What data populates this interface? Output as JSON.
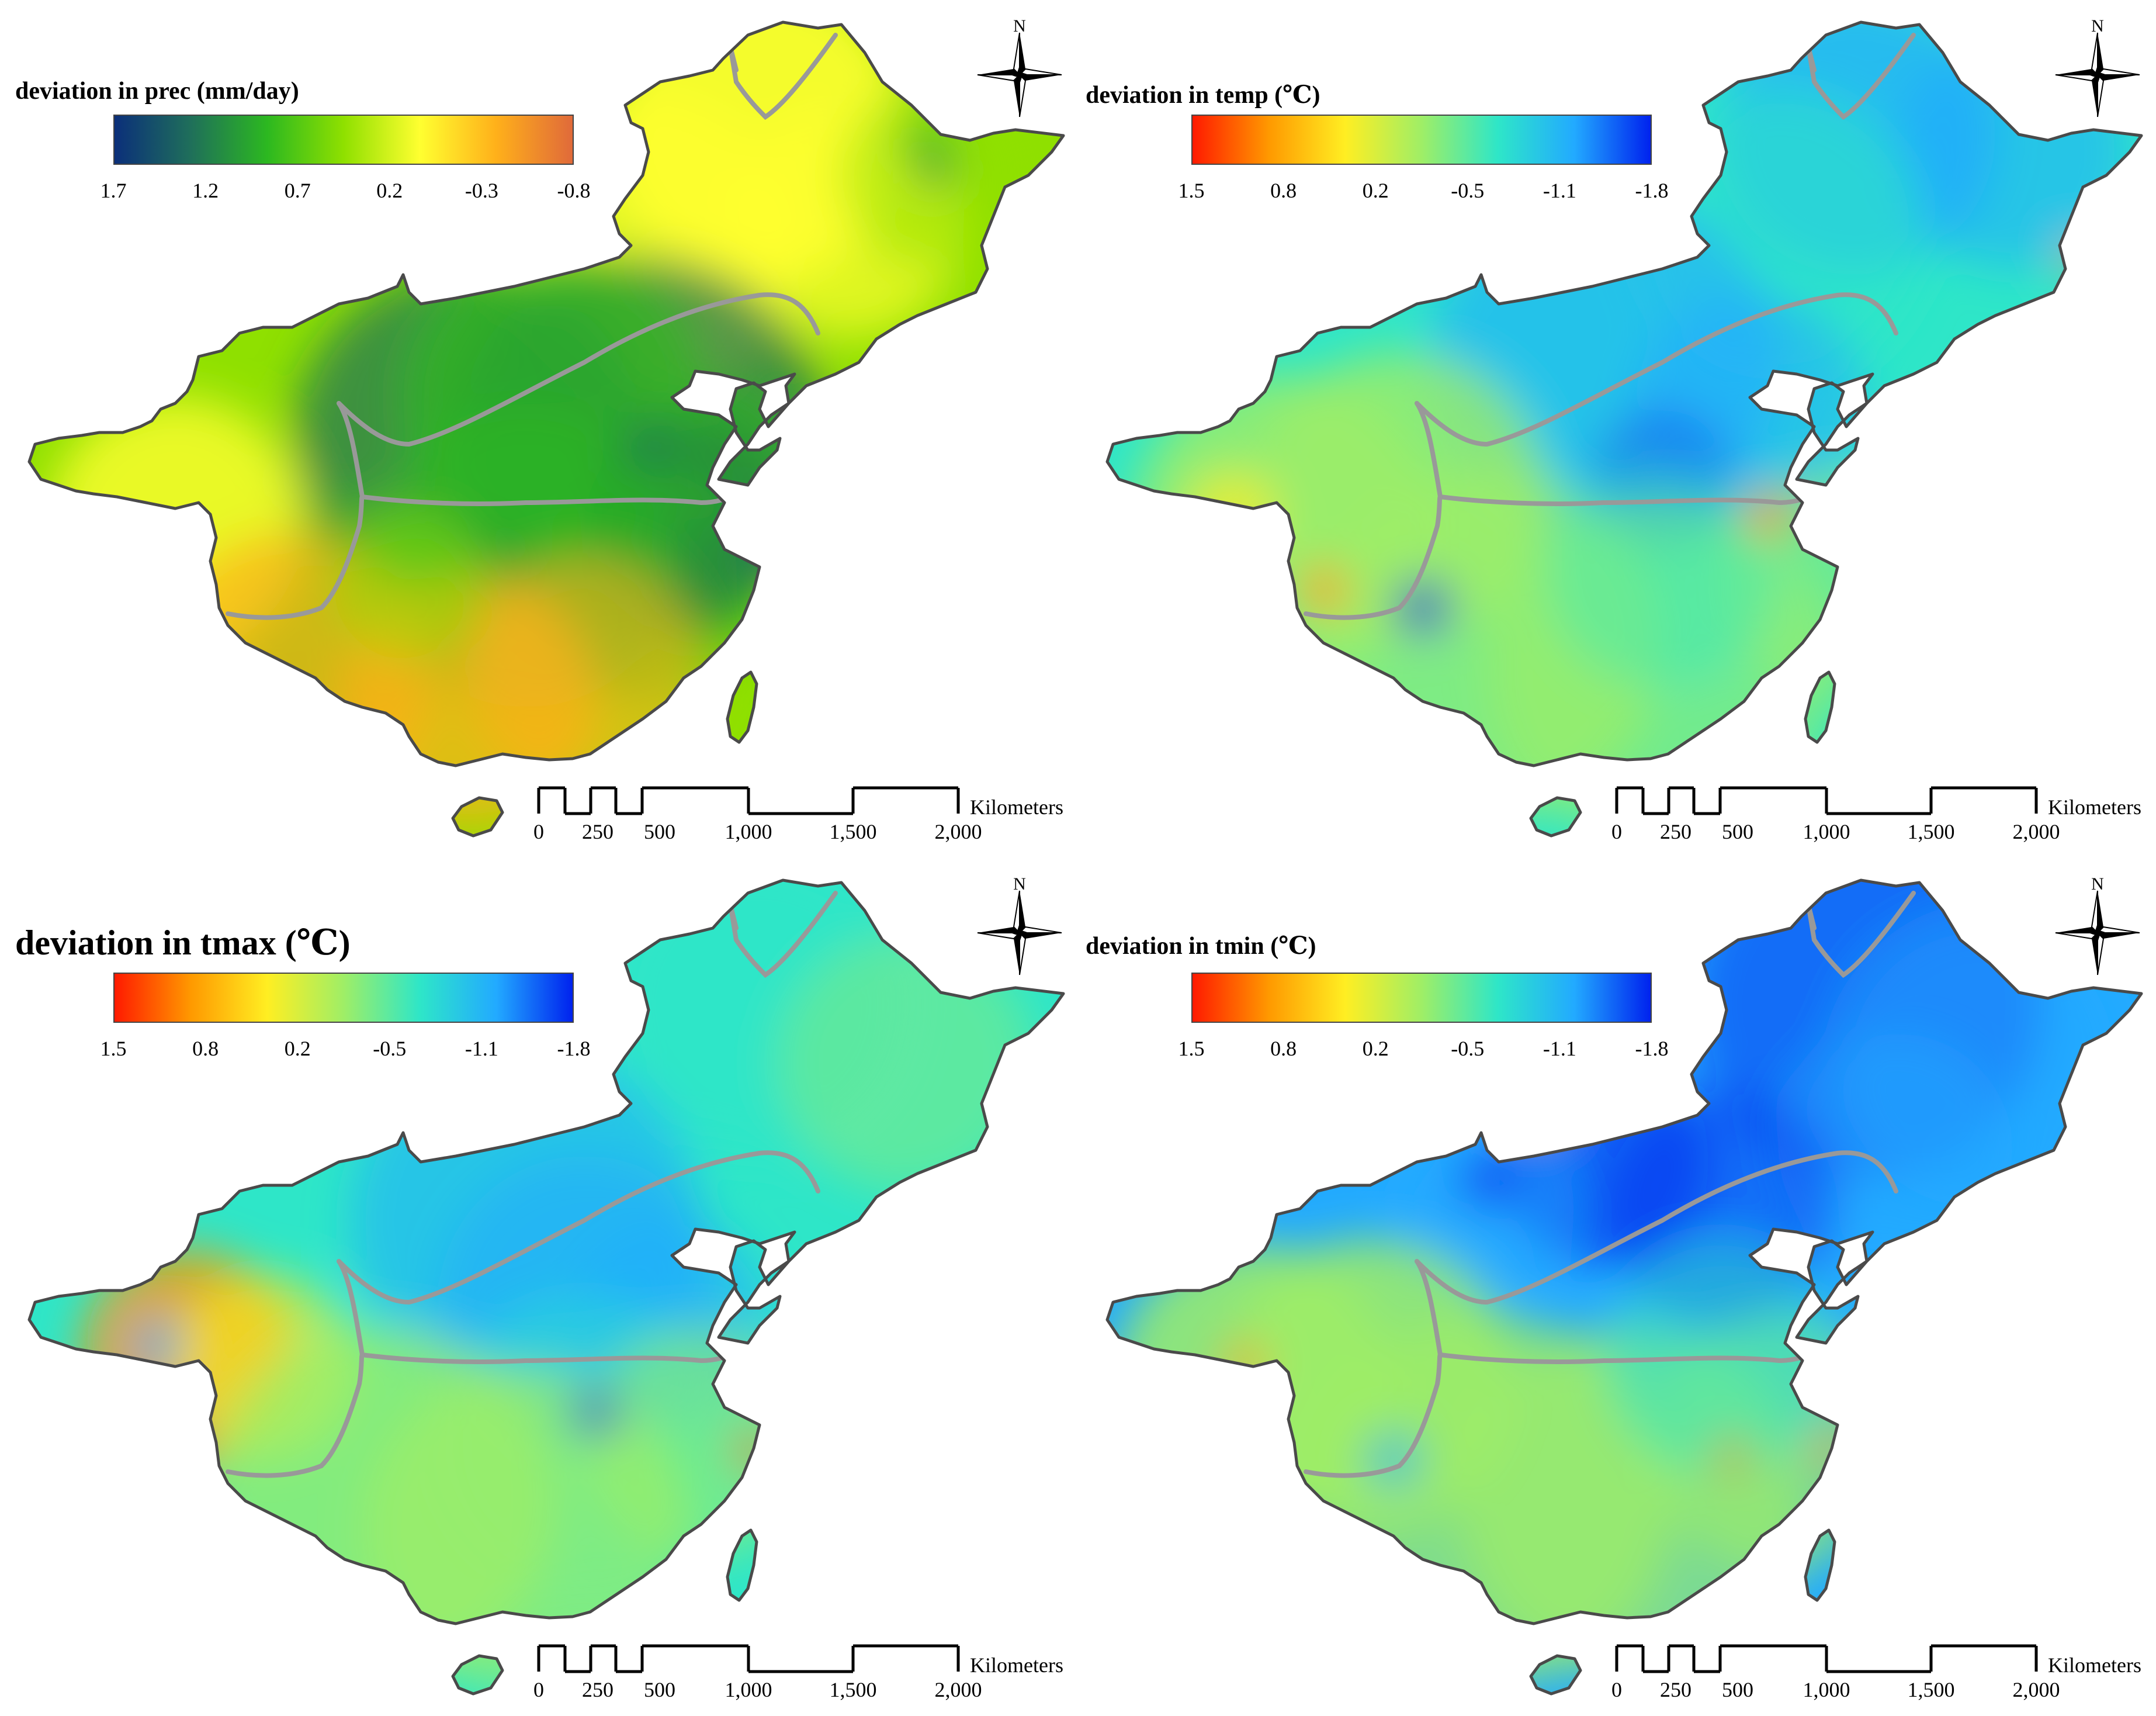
{
  "panels": [
    {
      "id": "prec",
      "title": "deviation in prec (mm/day)",
      "ticks": [
        "1.7",
        "1.2",
        "0.7",
        "0.2",
        "-0.3",
        "-0.8"
      ],
      "gradient": [
        "#0b2f7a",
        "#1f6f5a",
        "#2cb820",
        "#8fe000",
        "#ffff30",
        "#ffb01a",
        "#e06a3a"
      ],
      "scheme": "prec"
    },
    {
      "id": "temp",
      "title": "deviation in temp (℃)",
      "ticks": [
        "1.5",
        "0.8",
        "0.2",
        "-0.5",
        "-1.1",
        "-1.8"
      ],
      "gradient": [
        "#ff1a00",
        "#ff9900",
        "#ffee22",
        "#9fee66",
        "#2ee6c8",
        "#22aaff",
        "#0022ee"
      ],
      "scheme": "temp"
    },
    {
      "id": "tmax",
      "title": "deviation in tmax (℃)",
      "ticks": [
        "1.5",
        "0.8",
        "0.2",
        "-0.5",
        "-1.1",
        "-1.8"
      ],
      "gradient": [
        "#ff1a00",
        "#ff9900",
        "#ffee22",
        "#9fee66",
        "#2ee6c8",
        "#22aaff",
        "#0022ee"
      ],
      "scheme": "tmax"
    },
    {
      "id": "tmin",
      "title": "deviation in tmin (℃)",
      "ticks": [
        "1.5",
        "0.8",
        "0.2",
        "-0.5",
        "-1.1",
        "-1.8"
      ],
      "gradient": [
        "#ff1a00",
        "#ff9900",
        "#ffee22",
        "#9fee66",
        "#2ee6c8",
        "#22aaff",
        "#0022ee"
      ],
      "scheme": "tmin"
    }
  ],
  "north_label": "N",
  "scalebar": {
    "labels": [
      "0",
      "250",
      "500",
      "1,000",
      "1,500",
      "2,000"
    ],
    "unit": "Kilometers"
  },
  "colors": {
    "border": "#4a4a4a",
    "region_line": "#999999",
    "land_fallback": "#dddddd"
  }
}
